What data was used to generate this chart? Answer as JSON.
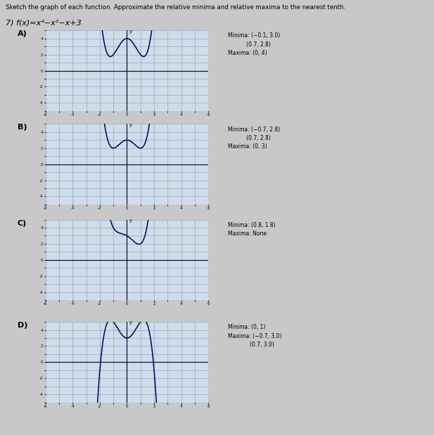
{
  "page_title": "Sketch the graph of each function. Approximate the relative minima and relative maxima to the nearest tenth.",
  "problem_label": "7) f(x)=x⁴−x²−x+3",
  "bg_color": "#c8c8c8",
  "grid_bg": "#d0dce8",
  "grid_line_color": "#8eaac8",
  "axis_color": "#111133",
  "curve_color": "#000055",
  "panels": [
    {
      "label": "A)",
      "curve_type": "A",
      "ann_lines": [
        "Minima: (−0.1, 3.0)",
        "           (0.7, 2.8)",
        "Maxima: (0, 4)"
      ],
      "xlim": [
        -6,
        6
      ],
      "ylim": [
        -5,
        5
      ],
      "xticks": [
        -6,
        -5,
        -4,
        -3,
        -2,
        -1,
        0,
        1,
        2,
        3,
        4,
        5,
        6
      ],
      "yticks": [
        -5,
        -4,
        -3,
        -2,
        -1,
        0,
        1,
        2,
        3,
        4,
        5
      ]
    },
    {
      "label": "B)",
      "curve_type": "B",
      "ann_lines": [
        "Minima: (−0.7, 2.8)",
        "           (0.7, 2.8)",
        "Maxima: (0, 3)"
      ],
      "xlim": [
        -6,
        6
      ],
      "ylim": [
        -5,
        5
      ],
      "xticks": [
        -6,
        -5,
        -4,
        -3,
        -2,
        -1,
        0,
        1,
        2,
        3,
        4,
        5,
        6
      ],
      "yticks": [
        -5,
        -4,
        -3,
        -2,
        -1,
        0,
        1,
        2,
        3,
        4,
        5
      ]
    },
    {
      "label": "C)",
      "curve_type": "C",
      "ann_lines": [
        "Minima: (0.8, 1.8)",
        "Maxima: None"
      ],
      "xlim": [
        -6,
        6
      ],
      "ylim": [
        -5,
        5
      ],
      "xticks": [
        -6,
        -5,
        -4,
        -3,
        -2,
        -1,
        0,
        1,
        2,
        3,
        4,
        5,
        6
      ],
      "yticks": [
        -5,
        -4,
        -3,
        -2,
        -1,
        0,
        1,
        2,
        3,
        4,
        5
      ]
    },
    {
      "label": "D)",
      "curve_type": "D",
      "ann_lines": [
        "Minima: (0, 1)",
        "Maxima: (−0.7, 3.0)",
        "             (0.7, 3.0)"
      ],
      "xlim": [
        -6,
        6
      ],
      "ylim": [
        -5,
        5
      ],
      "xticks": [
        -6,
        -5,
        -4,
        -3,
        -2,
        -1,
        0,
        1,
        2,
        3,
        4,
        5,
        6
      ],
      "yticks": [
        -5,
        -4,
        -3,
        -2,
        -1,
        0,
        1,
        2,
        3,
        4,
        5
      ]
    }
  ]
}
